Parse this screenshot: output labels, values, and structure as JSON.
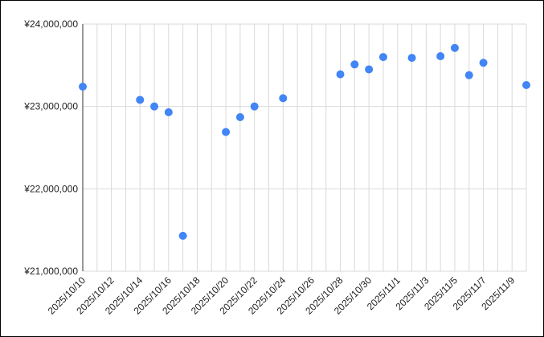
{
  "chart_data": {
    "type": "scatter",
    "title": "",
    "xlabel": "",
    "ylabel": "",
    "x_tick_labels": [
      "2025/10/10",
      "2025/10/12",
      "2025/10/14",
      "2025/10/16",
      "2025/10/18",
      "2025/10/20",
      "2025/10/22",
      "2025/10/24",
      "2025/10/26",
      "2025/10/28",
      "2025/10/30",
      "2025/11/1",
      "2025/11/3",
      "2025/11/5",
      "2025/11/7",
      "2025/11/9"
    ],
    "y_tick_labels": [
      "¥24,000,000",
      "¥23,000,000",
      "¥22,000,000",
      "¥21,000,000"
    ],
    "y_ticks": [
      24000000,
      23000000,
      22000000,
      21000000
    ],
    "xlim": [
      "2025-10-10",
      "2025-11-10"
    ],
    "ylim": [
      21000000,
      24000000
    ],
    "grid": true,
    "point_color": "#4285f4",
    "series": [
      {
        "points": [
          {
            "x": "2025-10-10",
            "y": 23240000
          },
          {
            "x": "2025-10-14",
            "y": 23080000
          },
          {
            "x": "2025-10-15",
            "y": 23000000
          },
          {
            "x": "2025-10-16",
            "y": 22930000
          },
          {
            "x": "2025-10-17",
            "y": 21430000
          },
          {
            "x": "2025-10-20",
            "y": 22690000
          },
          {
            "x": "2025-10-21",
            "y": 22870000
          },
          {
            "x": "2025-10-22",
            "y": 23000000
          },
          {
            "x": "2025-10-24",
            "y": 23100000
          },
          {
            "x": "2025-10-28",
            "y": 23390000
          },
          {
            "x": "2025-10-29",
            "y": 23510000
          },
          {
            "x": "2025-10-30",
            "y": 23450000
          },
          {
            "x": "2025-10-31",
            "y": 23600000
          },
          {
            "x": "2025-11-02",
            "y": 23590000
          },
          {
            "x": "2025-11-04",
            "y": 23610000
          },
          {
            "x": "2025-11-05",
            "y": 23710000
          },
          {
            "x": "2025-11-06",
            "y": 23380000
          },
          {
            "x": "2025-11-07",
            "y": 23530000
          },
          {
            "x": "2025-11-10",
            "y": 23260000
          }
        ]
      }
    ]
  }
}
